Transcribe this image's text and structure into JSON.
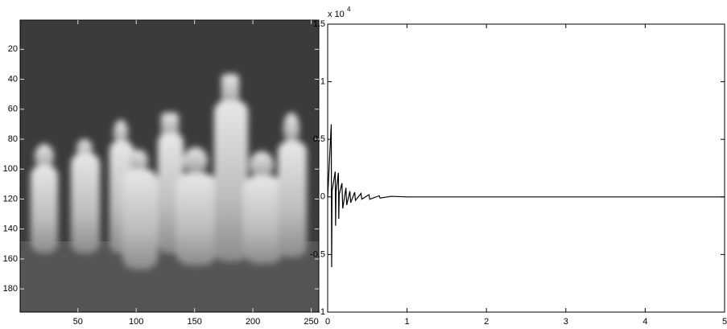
{
  "chart_data": [
    {
      "type": "image",
      "xlim": [
        0.5,
        256.5
      ],
      "ylim": [
        0.5,
        195.5
      ],
      "xticks": [
        50,
        100,
        150,
        200,
        250
      ],
      "yticks": [
        20,
        40,
        60,
        80,
        100,
        120,
        140,
        160,
        180
      ]
    },
    {
      "type": "line",
      "multiplier": {
        "base": "x 10",
        "exponent": "4"
      },
      "xlim": [
        0,
        5
      ],
      "ylim": [
        -1,
        1.5
      ],
      "xticks": [
        0,
        1,
        2,
        3,
        4,
        5
      ],
      "yticks": [
        -1,
        -0.5,
        0,
        0.5,
        1,
        1.5
      ],
      "color": "#000000",
      "x": [
        0,
        0.045,
        0.05,
        0.055,
        0.095,
        0.1,
        0.105,
        0.135,
        0.14,
        0.145,
        0.18,
        0.19,
        0.23,
        0.24,
        0.28,
        0.29,
        0.34,
        0.35,
        0.42,
        0.43,
        0.52,
        0.53,
        0.65,
        0.66,
        0.8,
        1,
        5
      ],
      "values": [
        0,
        0.63,
        -0.61,
        0.05,
        0.22,
        -0.25,
        0.04,
        0.21,
        -0.19,
        0.02,
        0.12,
        -0.1,
        0.08,
        -0.07,
        0.05,
        -0.05,
        0.04,
        -0.03,
        0.03,
        -0.02,
        0.02,
        -0.02,
        0.01,
        -0.01,
        0.005,
        0,
        0
      ]
    }
  ]
}
